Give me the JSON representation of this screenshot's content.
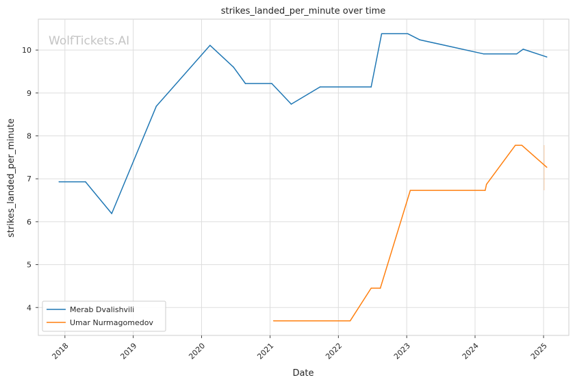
{
  "chart_data": {
    "type": "line",
    "title": "strikes_landed_per_minute over time",
    "xlabel": "Date",
    "ylabel": "strikes_landed_per_minute",
    "watermark": "WolfTickets.AI",
    "grid": true,
    "legend_position": "bottom-left",
    "x_ticks": [
      "2018",
      "2019",
      "2020",
      "2021",
      "2022",
      "2023",
      "2024",
      "2025"
    ],
    "y_ticks": [
      4,
      5,
      6,
      7,
      8,
      9,
      10
    ],
    "xlim": [
      "2017-08-12",
      "2025-05-16"
    ],
    "ylim": [
      3.35,
      10.72
    ],
    "series": [
      {
        "name": "Merab Dvalishvili",
        "color": "#1f77b4",
        "points": [
          [
            "2017-12-01",
            6.93
          ],
          [
            "2018-04-21",
            6.93
          ],
          [
            "2018-09-08",
            6.19
          ],
          [
            "2019-05-04",
            8.69
          ],
          [
            "2020-02-15",
            10.11
          ],
          [
            "2020-06-20",
            9.6
          ],
          [
            "2020-08-22",
            9.22
          ],
          [
            "2021-01-10",
            9.22
          ],
          [
            "2021-04-24",
            8.74
          ],
          [
            "2021-09-25",
            9.14
          ],
          [
            "2022-06-25",
            9.14
          ],
          [
            "2022-08-20",
            10.38
          ],
          [
            "2023-01-07",
            10.38
          ],
          [
            "2023-03-11",
            10.24
          ],
          [
            "2024-02-17",
            9.91
          ],
          [
            "2024-08-10",
            9.91
          ],
          [
            "2024-09-14",
            10.02
          ],
          [
            "2025-01-18",
            9.84
          ]
        ]
      },
      {
        "name": "Umar Nurmagomedov",
        "color": "#ff7f0e",
        "points": [
          [
            "2021-01-20",
            3.69
          ],
          [
            "2022-03-05",
            3.69
          ],
          [
            "2022-06-25",
            4.45
          ],
          [
            "2022-08-13",
            4.45
          ],
          [
            "2023-01-20",
            6.73
          ],
          [
            "2024-02-24",
            6.73
          ],
          [
            "2024-03-02",
            6.87
          ],
          [
            "2024-08-03",
            7.78
          ],
          [
            "2024-09-07",
            7.78
          ],
          [
            "2025-01-18",
            7.27
          ]
        ]
      }
    ]
  }
}
